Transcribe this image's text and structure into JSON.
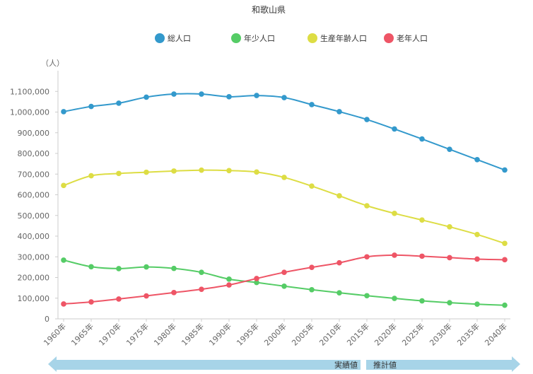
{
  "chart_data": {
    "type": "line",
    "title": "和歌山県",
    "ylabel": "（人）",
    "xlabel": "",
    "categories": [
      "1960年",
      "1965年",
      "1970年",
      "1975年",
      "1980年",
      "1985年",
      "1990年",
      "1995年",
      "2000年",
      "2005年",
      "2010年",
      "2015年",
      "2020年",
      "2025年",
      "2030年",
      "2035年",
      "2040年"
    ],
    "ylim": [
      0,
      1200000
    ],
    "yticks": [
      0,
      100000,
      200000,
      300000,
      400000,
      500000,
      600000,
      700000,
      800000,
      900000,
      1000000,
      1100000
    ],
    "ytick_labels": [
      "0",
      "100,000",
      "200,000",
      "300,000",
      "400,000",
      "500,000",
      "600,000",
      "700,000",
      "800,000",
      "900,000",
      "1,000,000",
      "1,100,000"
    ],
    "grid": false,
    "legend": "top",
    "series": [
      {
        "name": "総人口",
        "color": "#3399cc",
        "values": [
          1002000,
          1027000,
          1043000,
          1072000,
          1087000,
          1087000,
          1074000,
          1080000,
          1070000,
          1036000,
          1002000,
          964000,
          918000,
          870000,
          820000,
          770000,
          720000
        ]
      },
      {
        "name": "年少人口",
        "color": "#55cc66",
        "values": [
          284000,
          252000,
          243000,
          251000,
          244000,
          225000,
          192000,
          176000,
          158000,
          141000,
          126000,
          112000,
          99000,
          87000,
          78000,
          71000,
          66000
        ]
      },
      {
        "name": "生産年齢人口",
        "color": "#dddd44",
        "values": [
          645000,
          692000,
          703000,
          709000,
          715000,
          719000,
          717000,
          710000,
          684000,
          642000,
          595000,
          547000,
          510000,
          478000,
          445000,
          408000,
          365000
        ]
      },
      {
        "name": "老年人口",
        "color": "#ee5566",
        "values": [
          72000,
          82000,
          96000,
          111000,
          127000,
          143000,
          164000,
          195000,
          225000,
          249000,
          271000,
          300000,
          308000,
          303000,
          296000,
          289000,
          286000
        ]
      }
    ],
    "bands": {
      "actual_label": "実績値",
      "forecast_label": "推計値"
    }
  },
  "colors": {
    "axis": "#cccccc",
    "band": "#a7d4e8"
  }
}
